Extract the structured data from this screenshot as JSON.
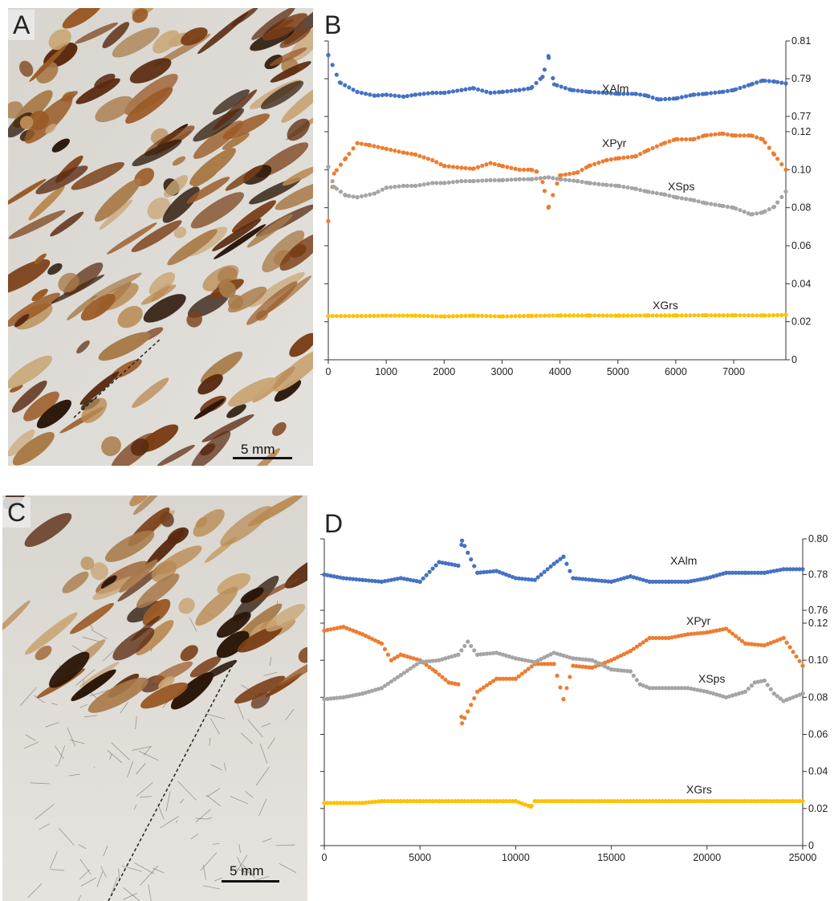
{
  "panels": {
    "A": {
      "letter": "A",
      "scale_label": "5 mm"
    },
    "B": {
      "letter": "B"
    },
    "C": {
      "letter": "C",
      "scale_label": "5 mm"
    },
    "D": {
      "letter": "D"
    }
  },
  "colors": {
    "XAlm": "#4472c4",
    "XPyr": "#ed7d31",
    "XSps": "#a5a5a5",
    "XGrs": "#ffc000"
  },
  "chart_data": [
    {
      "panel": "B",
      "type": "scatter",
      "xlim": [
        0,
        7900
      ],
      "xticks": [
        0,
        1000,
        2000,
        3000,
        4000,
        5000,
        6000,
        7000
      ],
      "upper_axis": {
        "ylim": [
          0.77,
          0.81
        ],
        "ticks": [
          0.77,
          0.79,
          0.81
        ]
      },
      "lower_axis": {
        "ylim": [
          0,
          0.12
        ],
        "ticks": [
          0,
          0.02,
          0.04,
          0.06,
          0.08,
          0.1,
          0.12
        ]
      },
      "series": [
        {
          "name": "XAlm",
          "axis": "upper",
          "x": [
            0,
            200,
            500,
            800,
            1000,
            1300,
            1500,
            1800,
            2000,
            2300,
            2500,
            2800,
            3000,
            3300,
            3500,
            3700,
            3800,
            3900,
            4200,
            4500,
            4800,
            5000,
            5300,
            5500,
            5700,
            6000,
            6300,
            6500,
            6800,
            7000,
            7300,
            7500,
            7700,
            7900
          ],
          "y": [
            0.8025,
            0.788,
            0.783,
            0.781,
            0.7815,
            0.7805,
            0.7815,
            0.7825,
            0.7825,
            0.784,
            0.785,
            0.7825,
            0.783,
            0.784,
            0.785,
            0.791,
            0.802,
            0.787,
            0.784,
            0.783,
            0.7825,
            0.782,
            0.782,
            0.781,
            0.779,
            0.7795,
            0.7815,
            0.782,
            0.783,
            0.784,
            0.787,
            0.789,
            0.7885,
            0.7875
          ]
        },
        {
          "name": "XPyr",
          "axis": "lower",
          "x": [
            0,
            100,
            300,
            500,
            700,
            1000,
            1300,
            1500,
            1800,
            2000,
            2300,
            2500,
            2800,
            3000,
            3300,
            3500,
            3600,
            3700,
            3800,
            4000,
            4300,
            4500,
            4800,
            5000,
            5300,
            5500,
            5800,
            6000,
            6300,
            6500,
            6800,
            7000,
            7300,
            7500,
            7700,
            7900
          ],
          "y": [
            0.073,
            0.098,
            0.106,
            0.114,
            0.113,
            0.111,
            0.109,
            0.108,
            0.105,
            0.102,
            0.101,
            0.1005,
            0.1035,
            0.102,
            0.1,
            0.1,
            0.099,
            0.0935,
            0.08,
            0.097,
            0.0985,
            0.102,
            0.105,
            0.106,
            0.107,
            0.11,
            0.114,
            0.116,
            0.116,
            0.118,
            0.119,
            0.118,
            0.118,
            0.116,
            0.108,
            0.1
          ]
        },
        {
          "name": "XSps",
          "axis": "lower",
          "x": [
            0,
            100,
            300,
            500,
            800,
            1000,
            1300,
            1500,
            1800,
            2000,
            2300,
            2500,
            2800,
            3000,
            3300,
            3500,
            3800,
            4000,
            4300,
            4500,
            4800,
            5000,
            5300,
            5500,
            5800,
            6000,
            6300,
            6500,
            6800,
            7000,
            7300,
            7500,
            7700,
            7900
          ],
          "y": [
            0.1015,
            0.091,
            0.0865,
            0.0855,
            0.0875,
            0.0905,
            0.0915,
            0.0915,
            0.093,
            0.093,
            0.094,
            0.094,
            0.0945,
            0.0945,
            0.095,
            0.095,
            0.096,
            0.095,
            0.094,
            0.093,
            0.092,
            0.0915,
            0.09,
            0.0885,
            0.087,
            0.0855,
            0.084,
            0.0825,
            0.081,
            0.08,
            0.0765,
            0.0775,
            0.0805,
            0.0885
          ]
        },
        {
          "name": "XGrs",
          "axis": "lower",
          "x": [
            0,
            500,
            1000,
            1500,
            2000,
            2500,
            3000,
            3500,
            4000,
            4500,
            5000,
            5500,
            6000,
            6500,
            7000,
            7500,
            7900
          ],
          "y": [
            0.023,
            0.023,
            0.0232,
            0.0232,
            0.0228,
            0.0232,
            0.0228,
            0.0231,
            0.0233,
            0.0233,
            0.0232,
            0.0233,
            0.0233,
            0.0234,
            0.0234,
            0.0233,
            0.0236
          ]
        }
      ]
    },
    {
      "panel": "D",
      "type": "scatter",
      "xlim": [
        0,
        25000
      ],
      "xticks": [
        0,
        5000,
        10000,
        15000,
        20000,
        25000
      ],
      "upper_axis": {
        "ylim": [
          0.76,
          0.8
        ],
        "ticks": [
          0.76,
          0.78,
          0.8
        ]
      },
      "lower_axis": {
        "ylim": [
          0,
          0.12
        ],
        "ticks": [
          0,
          0.02,
          0.04,
          0.06,
          0.08,
          0.1,
          0.12
        ]
      },
      "series": [
        {
          "name": "XAlm",
          "axis": "upper",
          "x": [
            0,
            1000,
            2000,
            3000,
            4000,
            5000,
            6000,
            7000,
            7200,
            8000,
            9000,
            10000,
            11000,
            12000,
            12500,
            13000,
            14000,
            15000,
            16000,
            17000,
            18000,
            19000,
            20000,
            21000,
            22000,
            23000,
            24000,
            25000
          ],
          "y": [
            0.78,
            0.778,
            0.777,
            0.776,
            0.778,
            0.776,
            0.787,
            0.785,
            0.799,
            0.781,
            0.782,
            0.778,
            0.777,
            0.786,
            0.79,
            0.778,
            0.777,
            0.776,
            0.779,
            0.776,
            0.776,
            0.776,
            0.778,
            0.781,
            0.781,
            0.781,
            0.783,
            0.783
          ]
        },
        {
          "name": "XPyr",
          "axis": "lower",
          "x": [
            0,
            1000,
            2000,
            3000,
            3500,
            4000,
            5000,
            5800,
            6500,
            7000,
            7200,
            8000,
            9000,
            10000,
            11000,
            12000,
            12500,
            13000,
            14000,
            15000,
            16000,
            17000,
            18000,
            19000,
            20000,
            21000,
            22000,
            23000,
            24000,
            25000
          ],
          "y": [
            0.116,
            0.118,
            0.114,
            0.109,
            0.1,
            0.103,
            0.1,
            0.094,
            0.088,
            0.087,
            0.066,
            0.083,
            0.09,
            0.09,
            0.098,
            0.098,
            0.079,
            0.097,
            0.096,
            0.1,
            0.105,
            0.112,
            0.112,
            0.114,
            0.115,
            0.117,
            0.109,
            0.108,
            0.112,
            0.097
          ]
        },
        {
          "name": "XSps",
          "axis": "lower",
          "x": [
            0,
            1000,
            2000,
            3000,
            4000,
            5000,
            6000,
            7000,
            7500,
            8000,
            9000,
            10000,
            11000,
            12000,
            13000,
            14000,
            15000,
            16000,
            16500,
            17000,
            18000,
            19000,
            20000,
            21000,
            22000,
            22500,
            23000,
            23500,
            24000,
            25000
          ],
          "y": [
            0.079,
            0.08,
            0.082,
            0.085,
            0.092,
            0.099,
            0.1,
            0.103,
            0.11,
            0.103,
            0.104,
            0.101,
            0.099,
            0.104,
            0.101,
            0.1,
            0.095,
            0.094,
            0.087,
            0.085,
            0.085,
            0.085,
            0.083,
            0.08,
            0.083,
            0.088,
            0.089,
            0.082,
            0.078,
            0.082
          ]
        },
        {
          "name": "XGrs",
          "axis": "lower",
          "x": [
            0,
            1000,
            2000,
            3000,
            4000,
            5000,
            6000,
            7000,
            8000,
            9000,
            10000,
            10800,
            11000,
            12000,
            13000,
            14000,
            15000,
            16000,
            17000,
            18000,
            19000,
            20000,
            21000,
            22000,
            23000,
            24000,
            25000
          ],
          "y": [
            0.023,
            0.023,
            0.023,
            0.024,
            0.024,
            0.024,
            0.024,
            0.024,
            0.024,
            0.024,
            0.024,
            0.021,
            0.024,
            0.024,
            0.024,
            0.024,
            0.024,
            0.024,
            0.024,
            0.024,
            0.024,
            0.024,
            0.024,
            0.024,
            0.024,
            0.024,
            0.024
          ]
        }
      ]
    }
  ]
}
